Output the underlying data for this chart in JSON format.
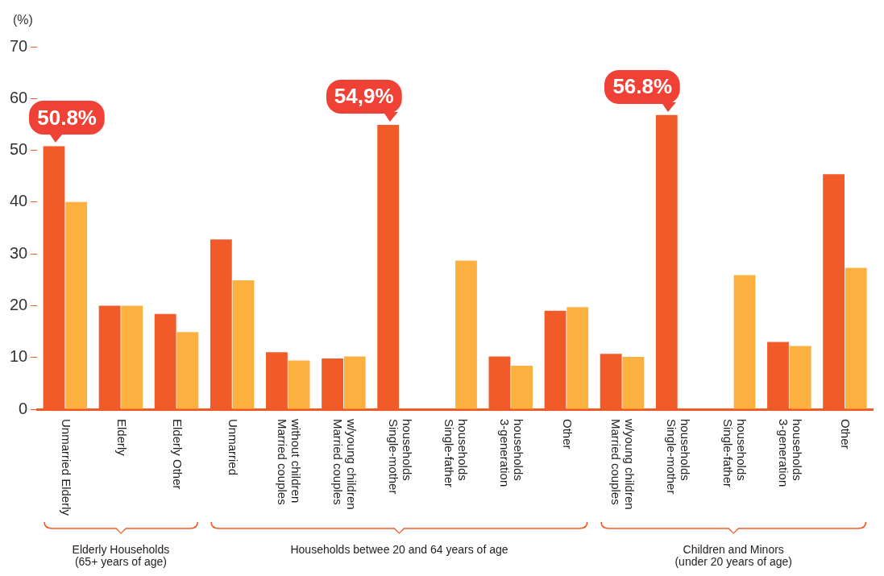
{
  "chart_data": {
    "type": "bar",
    "ylabel": "(%)",
    "categories": [
      "Unmarried Elderly",
      "Elderly",
      "Elderly Other",
      "Unmarried",
      "Married couples without children",
      "Married couples w/young children",
      "Single-mother households",
      "Single-father households",
      "3-generation households",
      "Other",
      "Married couples w/young children",
      "Single-mother households",
      "Single-father households",
      "3-generation households",
      "Other"
    ],
    "series": [
      {
        "color": "#f15a29",
        "values": [
          50.8,
          20.0,
          18.4,
          32.8,
          11.0,
          9.8,
          54.9,
          null,
          10.2,
          19.0,
          10.7,
          56.8,
          null,
          13.0,
          45.4
        ],
        "value_labels": [
          "50.8%",
          null,
          null,
          null,
          null,
          null,
          "54,9%",
          null,
          null,
          null,
          null,
          "56.8%",
          null,
          null,
          null
        ]
      },
      {
        "color": "#fbb040",
        "values": [
          40.0,
          20.0,
          14.9,
          24.9,
          9.4,
          10.2,
          null,
          28.7,
          8.4,
          19.7,
          10.1,
          null,
          25.9,
          12.2,
          27.3
        ]
      }
    ],
    "ylim": [
      0,
      70
    ],
    "yticks": [
      0,
      10,
      20,
      30,
      40,
      50,
      60,
      70
    ],
    "grid": false,
    "legend": false,
    "annotations": [
      "Elderly Households\n(65+ years of age)",
      "Households betwee 20 and 64 years of age",
      "Children and Minors\n(under 20 years of age)"
    ]
  }
}
